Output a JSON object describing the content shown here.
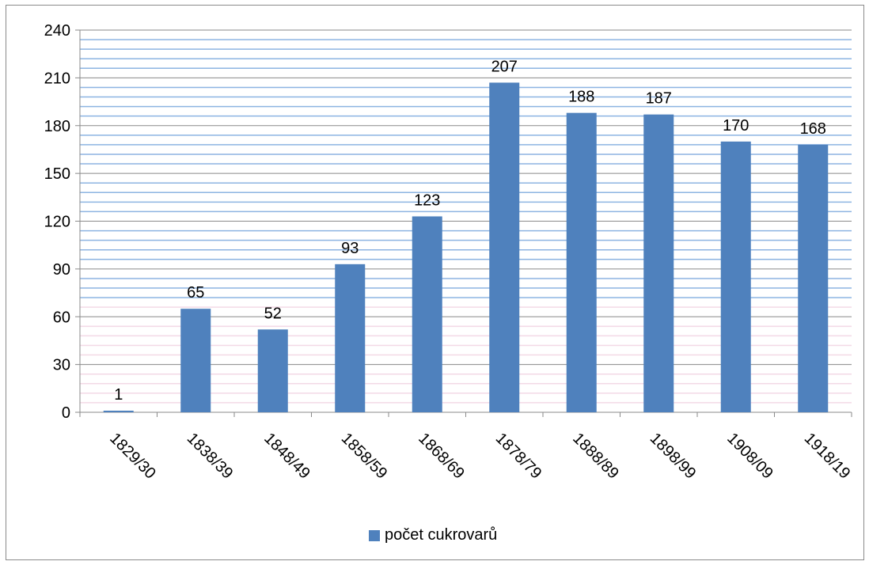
{
  "chart_data": {
    "type": "bar",
    "categories": [
      "1829/30",
      "1838/39",
      "1848/49",
      "1858/59",
      "1868/69",
      "1878/79",
      "1888/89",
      "1898/99",
      "1908/09",
      "1918/19"
    ],
    "series": [
      {
        "name": "počet cukrovarů",
        "values": [
          1,
          65,
          52,
          93,
          123,
          207,
          188,
          187,
          170,
          168
        ]
      }
    ],
    "ylim": [
      0,
      240
    ],
    "yticks": [
      0,
      30,
      60,
      90,
      120,
      150,
      180,
      210,
      240
    ],
    "data_labels": true,
    "grid": true,
    "legend_position": "bottom",
    "colors": {
      "bar": "#4f81bd"
    }
  }
}
